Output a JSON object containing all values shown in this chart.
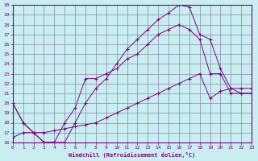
{
  "xlabel": "Windchill (Refroidissement éolien,°C)",
  "xlim": [
    0,
    23
  ],
  "ylim": [
    16,
    30
  ],
  "bg_color": "#c8eef0",
  "line_color": "#800080",
  "grid_color": "#8888aa",
  "line1_x": [
    0,
    1,
    2,
    3,
    4,
    5,
    6,
    7,
    8,
    9,
    10,
    11,
    12,
    13,
    14,
    15,
    16,
    17,
    18,
    19,
    20,
    21,
    22,
    23
  ],
  "line1_y": [
    20.0,
    18.0,
    17.0,
    16.0,
    16.0,
    16.0,
    18.0,
    20.0,
    21.5,
    22.5,
    24.0,
    25.5,
    26.5,
    27.5,
    28.5,
    29.2,
    30.0,
    29.8,
    27.0,
    26.5,
    23.5,
    21.5,
    21.0,
    21.0
  ],
  "line2_x": [
    0,
    1,
    2,
    3,
    4,
    5,
    6,
    7,
    8,
    9,
    10,
    11,
    12,
    13,
    14,
    15,
    16,
    17,
    18,
    19,
    20,
    21,
    22,
    23
  ],
  "line2_y": [
    20.0,
    18.0,
    17.0,
    16.0,
    16.0,
    18.0,
    19.5,
    22.5,
    22.5,
    23.0,
    23.5,
    24.5,
    25.0,
    26.0,
    27.0,
    27.5,
    28.0,
    27.5,
    26.5,
    23.0,
    23.0,
    21.0,
    21.0,
    21.0
  ],
  "line3_x": [
    0,
    1,
    2,
    3,
    4,
    5,
    6,
    7,
    8,
    9,
    10,
    11,
    12,
    13,
    14,
    15,
    16,
    17,
    18,
    19,
    20,
    21,
    22,
    23
  ],
  "line3_y": [
    16.5,
    17.0,
    17.0,
    17.0,
    17.2,
    17.4,
    17.6,
    17.8,
    18.0,
    18.5,
    19.0,
    19.5,
    20.0,
    20.5,
    21.0,
    21.5,
    22.0,
    22.5,
    23.0,
    20.5,
    21.2,
    21.5,
    21.5,
    21.5
  ]
}
